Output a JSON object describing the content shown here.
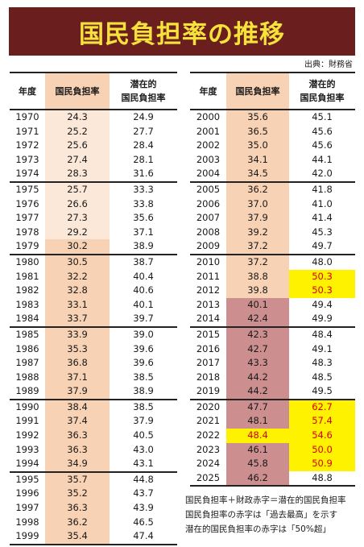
{
  "title": "国民負担率の推移",
  "source": "出典：財務省",
  "headers": {
    "year": "年度",
    "burden": "国民負担率",
    "potential_line1": "潜在的",
    "potential_line2": "国民負担率"
  },
  "left_rows": [
    {
      "year": "1970",
      "burden": "24.3",
      "potential": "24.9"
    },
    {
      "year": "1971",
      "burden": "25.2",
      "potential": "27.7"
    },
    {
      "year": "1972",
      "burden": "25.6",
      "potential": "28.4"
    },
    {
      "year": "1973",
      "burden": "27.4",
      "potential": "28.1"
    },
    {
      "year": "1974",
      "burden": "28.3",
      "potential": "31.6"
    },
    {
      "year": "1975",
      "burden": "25.7",
      "potential": "33.3"
    },
    {
      "year": "1976",
      "burden": "26.6",
      "potential": "33.8"
    },
    {
      "year": "1977",
      "burden": "27.3",
      "potential": "35.6"
    },
    {
      "year": "1978",
      "burden": "29.2",
      "potential": "37.1"
    },
    {
      "year": "1979",
      "burden": "30.2",
      "potential": "38.9"
    },
    {
      "year": "1980",
      "burden": "30.5",
      "potential": "38.7"
    },
    {
      "year": "1981",
      "burden": "32.2",
      "potential": "40.4"
    },
    {
      "year": "1982",
      "burden": "32.8",
      "potential": "40.6"
    },
    {
      "year": "1983",
      "burden": "33.1",
      "potential": "40.1"
    },
    {
      "year": "1984",
      "burden": "33.7",
      "potential": "39.7"
    },
    {
      "year": "1985",
      "burden": "33.9",
      "potential": "39.0"
    },
    {
      "year": "1986",
      "burden": "35.3",
      "potential": "39.6"
    },
    {
      "year": "1987",
      "burden": "36.8",
      "potential": "39.6"
    },
    {
      "year": "1988",
      "burden": "37.1",
      "potential": "38.5"
    },
    {
      "year": "1989",
      "burden": "37.9",
      "potential": "38.9"
    },
    {
      "year": "1990",
      "burden": "38.4",
      "potential": "38.5"
    },
    {
      "year": "1991",
      "burden": "37.4",
      "potential": "37.9"
    },
    {
      "year": "1992",
      "burden": "36.3",
      "potential": "40.5"
    },
    {
      "year": "1993",
      "burden": "36.3",
      "potential": "43.0"
    },
    {
      "year": "1994",
      "burden": "34.9",
      "potential": "43.1"
    },
    {
      "year": "1995",
      "burden": "35.7",
      "potential": "44.8"
    },
    {
      "year": "1996",
      "burden": "35.2",
      "potential": "43.7"
    },
    {
      "year": "1997",
      "burden": "36.3",
      "potential": "43.9"
    },
    {
      "year": "1998",
      "burden": "36.2",
      "potential": "46.5"
    },
    {
      "year": "1999",
      "burden": "35.4",
      "potential": "47.4"
    }
  ],
  "right_rows": [
    {
      "year": "2000",
      "burden": "35.6",
      "potential": "45.1"
    },
    {
      "year": "2001",
      "burden": "36.5",
      "potential": "45.6"
    },
    {
      "year": "2002",
      "burden": "35.0",
      "potential": "45.6"
    },
    {
      "year": "2003",
      "burden": "34.1",
      "potential": "44.1"
    },
    {
      "year": "2004",
      "burden": "34.5",
      "potential": "42.0"
    },
    {
      "year": "2005",
      "burden": "36.2",
      "potential": "41.8"
    },
    {
      "year": "2006",
      "burden": "37.0",
      "potential": "41.0"
    },
    {
      "year": "2007",
      "burden": "37.9",
      "potential": "41.4"
    },
    {
      "year": "2008",
      "burden": "39.2",
      "potential": "45.3"
    },
    {
      "year": "2009",
      "burden": "37.2",
      "potential": "49.7"
    },
    {
      "year": "2010",
      "burden": "37.2",
      "potential": "48.0"
    },
    {
      "year": "2011",
      "burden": "38.8",
      "potential": "50.3"
    },
    {
      "year": "2012",
      "burden": "39.8",
      "potential": "50.3"
    },
    {
      "year": "2013",
      "burden": "40.1",
      "potential": "49.4"
    },
    {
      "year": "2014",
      "burden": "42.4",
      "potential": "49.9"
    },
    {
      "year": "2015",
      "burden": "42.3",
      "potential": "48.4"
    },
    {
      "year": "2016",
      "burden": "42.7",
      "potential": "49.1"
    },
    {
      "year": "2017",
      "burden": "43.3",
      "potential": "48.3"
    },
    {
      "year": "2018",
      "burden": "44.2",
      "potential": "48.5"
    },
    {
      "year": "2019",
      "burden": "44.2",
      "potential": "49.5"
    },
    {
      "year": "2020",
      "burden": "47.7",
      "potential": "62.7"
    },
    {
      "year": "2021",
      "burden": "48.1",
      "potential": "57.4"
    },
    {
      "year": "2022",
      "burden": "48.4",
      "potential": "54.6"
    },
    {
      "year": "2023",
      "burden": "46.1",
      "potential": "50.0"
    },
    {
      "year": "2024",
      "burden": "45.8",
      "potential": "50.9"
    },
    {
      "year": "2025",
      "burden": "46.2",
      "potential": "48.8"
    }
  ],
  "notes": [
    "国民負担率＋財政赤字＝潜在的国民負担率",
    "国民負担率の赤字は「過去最高」を示す",
    "潜在的国民負担率の赤字は「50%超」"
  ],
  "colors": {
    "banner": "#6b1e1e",
    "title": "#f5e23a",
    "light_peach": "#fbe8d8",
    "peach": "#f8d2b4",
    "rose": "#cc8e8e",
    "highlight_yellow": "#fff200",
    "record_red": "#d90000"
  }
}
